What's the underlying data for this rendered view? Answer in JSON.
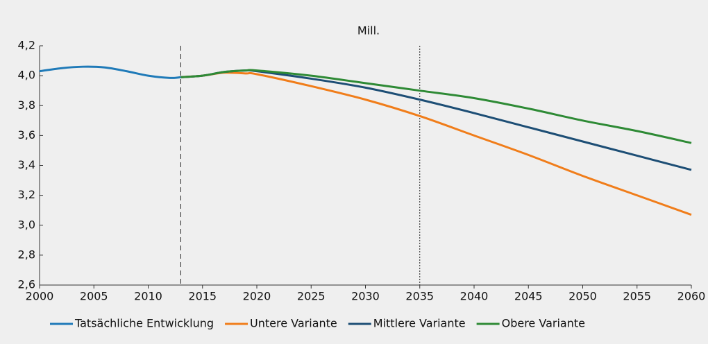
{
  "chart_data": {
    "type": "line",
    "title": "Mill.",
    "series": [
      {
        "name": "Tatsächliche Entwicklung",
        "color": "#1f7ab8",
        "x": [
          2000,
          2002,
          2004,
          2006,
          2008,
          2010,
          2012,
          2013
        ],
        "values": [
          4.03,
          4.05,
          4.06,
          4.055,
          4.03,
          4.0,
          3.985,
          3.99
        ]
      },
      {
        "name": "Untere Variante",
        "color": "#f07d1a",
        "x": [
          2013,
          2015,
          2017,
          2019,
          2020,
          2025,
          2030,
          2035,
          2040,
          2045,
          2050,
          2055,
          2060
        ],
        "values": [
          3.99,
          4.0,
          4.02,
          4.015,
          4.01,
          3.93,
          3.84,
          3.73,
          3.6,
          3.47,
          3.33,
          3.2,
          3.07
        ]
      },
      {
        "name": "Mittlere Variante",
        "color": "#1d4e75",
        "x": [
          2013,
          2015,
          2017,
          2019,
          2020,
          2025,
          2030,
          2035,
          2040,
          2045,
          2050,
          2055,
          2060
        ],
        "values": [
          3.99,
          4.0,
          4.025,
          4.035,
          4.03,
          3.98,
          3.92,
          3.84,
          3.75,
          3.655,
          3.56,
          3.465,
          3.37
        ]
      },
      {
        "name": "Obere Variante",
        "color": "#2e8a35",
        "x": [
          2013,
          2015,
          2017,
          2019,
          2020,
          2025,
          2030,
          2035,
          2040,
          2045,
          2050,
          2055,
          2060
        ],
        "values": [
          3.99,
          4.0,
          4.025,
          4.035,
          4.035,
          4.0,
          3.95,
          3.9,
          3.85,
          3.78,
          3.7,
          3.63,
          3.55
        ]
      }
    ],
    "xlim": [
      2000,
      2060
    ],
    "xticks": [
      2000,
      2005,
      2010,
      2015,
      2020,
      2025,
      2030,
      2035,
      2040,
      2045,
      2050,
      2055,
      2060
    ],
    "ylim": [
      2.6,
      4.2
    ],
    "yticks": [
      {
        "value": 2.6,
        "label": "2,6"
      },
      {
        "value": 2.8,
        "label": "2,8"
      },
      {
        "value": 3.0,
        "label": "3,0"
      },
      {
        "value": 3.2,
        "label": "3,2"
      },
      {
        "value": 3.4,
        "label": "3,4"
      },
      {
        "value": 3.6,
        "label": "3,6"
      },
      {
        "value": 3.8,
        "label": "3,8"
      },
      {
        "value": 4.0,
        "label": "4,0"
      },
      {
        "value": 4.2,
        "label": "4,2"
      }
    ],
    "vlines": [
      {
        "x": 2013,
        "style": "dashed"
      },
      {
        "x": 2035,
        "style": "dotted"
      }
    ],
    "legend": "bottom"
  }
}
